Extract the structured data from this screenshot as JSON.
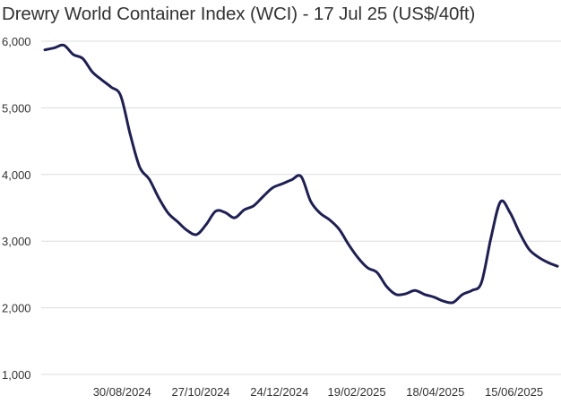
{
  "chart_data": {
    "type": "line",
    "title": "Drewry World Container Index (WCI) - 17 Jul 25 (US$/40ft)",
    "xlabel": "",
    "ylabel": "",
    "ylim": [
      1000,
      6000
    ],
    "yticks": [
      1000,
      2000,
      3000,
      4000,
      5000,
      6000
    ],
    "ytick_labels": [
      "1,000",
      "2,000",
      "3,000",
      "4,000",
      "5,000",
      "6,000"
    ],
    "x_start": "2024-07-04",
    "x_end": "2025-07-17",
    "interval_days": 7,
    "xticks": [
      "2024-08-30",
      "2024-10-27",
      "2024-12-24",
      "2025-02-19",
      "2025-04-18",
      "2025-06-15"
    ],
    "xtick_labels": [
      "30/08/2024",
      "27/10/2024",
      "24/12/2024",
      "19/02/2025",
      "18/04/2025",
      "15/06/2025"
    ],
    "grid": true,
    "series": [
      {
        "name": "WCI",
        "color": "#1e1f55",
        "values": [
          5870,
          5900,
          5940,
          5800,
          5740,
          5540,
          5420,
          5310,
          5180,
          4600,
          4110,
          3930,
          3650,
          3420,
          3290,
          3160,
          3100,
          3250,
          3450,
          3430,
          3350,
          3470,
          3530,
          3670,
          3800,
          3860,
          3920,
          3970,
          3600,
          3420,
          3320,
          3180,
          2950,
          2750,
          2600,
          2530,
          2320,
          2200,
          2210,
          2260,
          2200,
          2160,
          2100,
          2080,
          2200,
          2260,
          2380,
          3050,
          3590,
          3430,
          3130,
          2880,
          2760,
          2680,
          2624
        ]
      }
    ]
  }
}
